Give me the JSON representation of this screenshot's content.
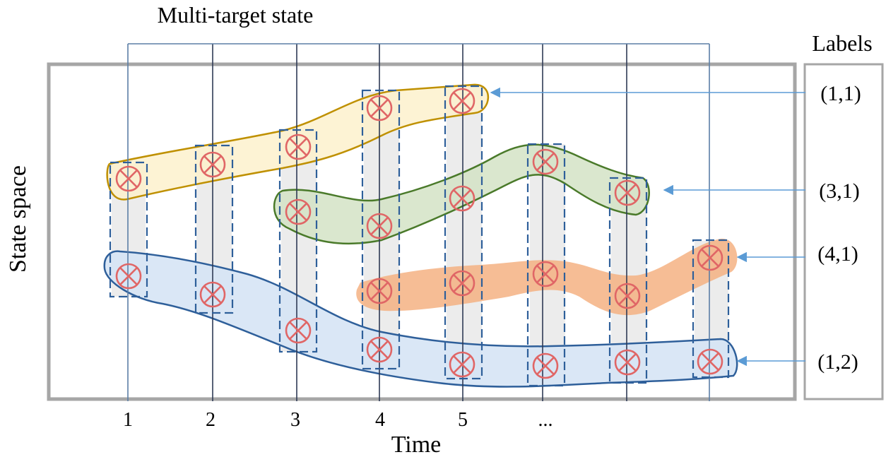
{
  "title": "Multi-target state",
  "labels_header": "Labels",
  "y_axis_label": "State space",
  "x_axis_label": "Time",
  "time_ticks": [
    "1",
    "2",
    "3",
    "4",
    "5",
    "..."
  ],
  "tracks": [
    {
      "label": "(1,1)",
      "fill": "#fdf1cc",
      "stroke": "#bf9000",
      "style": "outlined band"
    },
    {
      "label": "(3,1)",
      "fill": "#d3e3c5",
      "stroke": "#4a7a2a",
      "style": "outlined band"
    },
    {
      "label": "(4,1)",
      "fill": "#f4b183",
      "stroke": "#f4b183",
      "style": "filled band"
    },
    {
      "label": "(1,2)",
      "fill": "#d6e4f5",
      "stroke": "#2e5f9a",
      "style": "outlined band"
    }
  ],
  "colors": {
    "frame": "#a6a6a6",
    "time_line": "#2e4a6e",
    "target_marker": "#e06666",
    "dashed_box": "#2e5f9a",
    "arrow": "#5b9bd5",
    "column": "#e8e8e8"
  },
  "marker_icon": "circle-x-icon"
}
